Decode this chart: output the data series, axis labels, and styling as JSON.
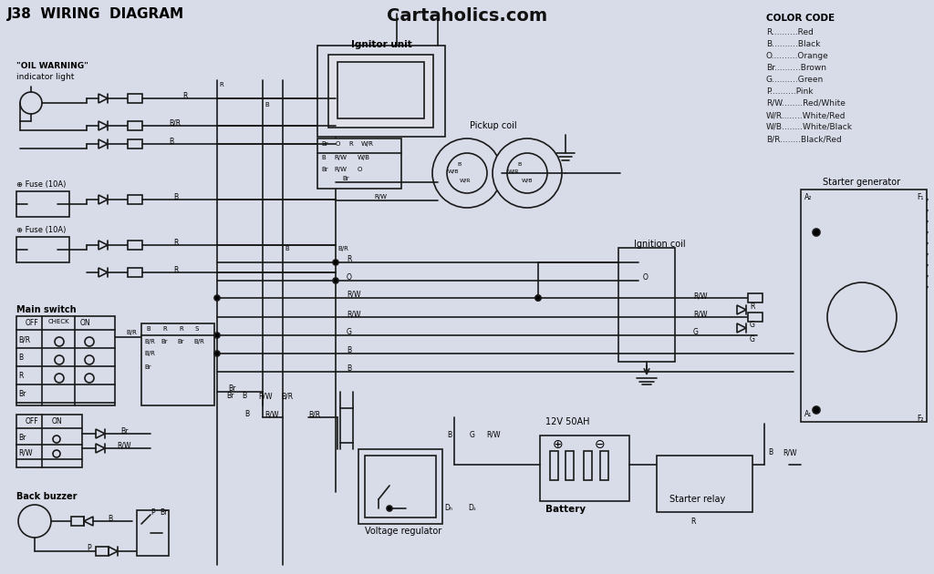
{
  "title": "J38  WIRING  DIAGRAM",
  "website": "Cartaholics.com",
  "bg_color": "#d8dce8",
  "line_color": "#1a1a1a",
  "color_code_title": "COLOR CODE",
  "color_codes": [
    [
      "R",
      "Red"
    ],
    [
      "B",
      "Black"
    ],
    [
      "O",
      "Orange"
    ],
    [
      "Br",
      "Brown"
    ],
    [
      "G",
      "Green"
    ],
    [
      "P",
      "Pink"
    ],
    [
      "R/W",
      "Red/White"
    ],
    [
      "W/R",
      "White/Red"
    ],
    [
      "W/B",
      "White/Black"
    ],
    [
      "B/R",
      "Black/Red"
    ]
  ],
  "labels": {
    "oil_warning": "\"OIL WARNING\"",
    "indicator_light": "indicator light",
    "fuse1": "Fuse (10A)",
    "fuse2": "Fuse (10A)",
    "main_switch": "Main switch",
    "back_buzzer": "Back buzzer",
    "ignitor_unit": "Ignitor unit",
    "pickup_coil": "Pickup coil",
    "ignition_coil": "Ignition coil",
    "starter_generator": "Starter generator",
    "battery": "Battery",
    "battery_spec": "12V 50AH",
    "starter_relay": "Starter relay",
    "voltage_regulator": "Voltage regulator"
  }
}
